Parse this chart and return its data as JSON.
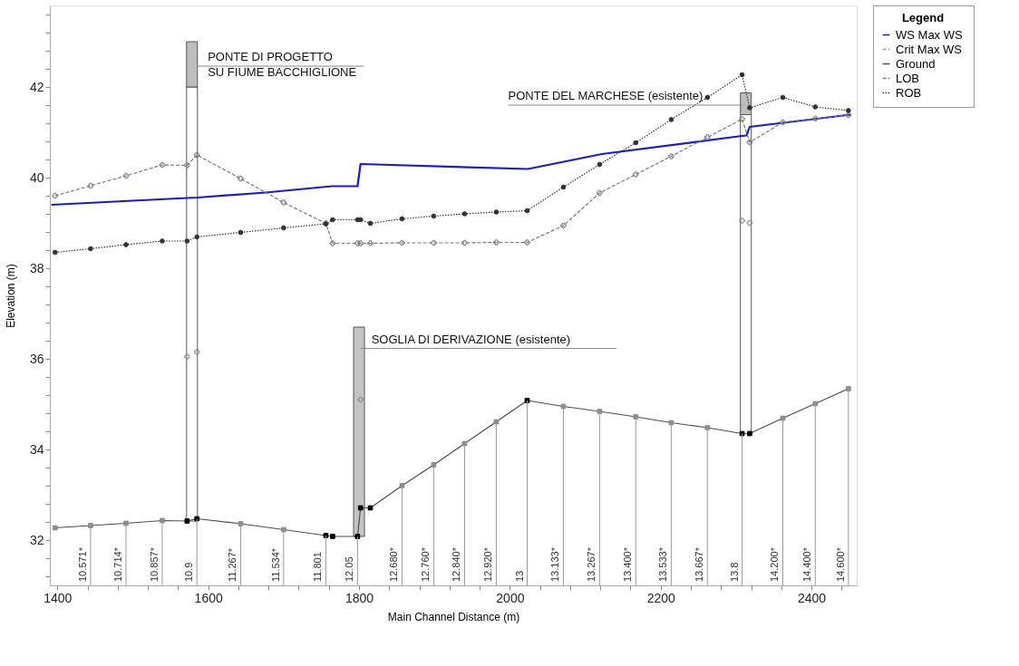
{
  "chart_data": {
    "type": "line",
    "xlabel": "Main Channel Distance (m)",
    "ylabel": "Elevation (m)",
    "legend_title": "Legend",
    "legend": "top right",
    "grid": false,
    "xlim": [
      1390,
      2460
    ],
    "ylim": [
      31,
      43.8
    ],
    "xticks": [
      1400,
      {
        "value": 1440,
        "label": null
      },
      {
        "value": 1480,
        "label": null
      },
      {
        "value": 1520,
        "label": null
      },
      {
        "value": 1560,
        "label": null
      },
      1600,
      {
        "value": 1640,
        "label": null
      },
      {
        "value": 1680,
        "label": null
      },
      {
        "value": 1720,
        "label": null
      },
      {
        "value": 1760,
        "label": null
      },
      1800,
      {
        "value": 1840,
        "label": null
      },
      {
        "value": 1880,
        "label": null
      },
      {
        "value": 1920,
        "label": null
      },
      {
        "value": 1960,
        "label": null
      },
      2000,
      {
        "value": 2040,
        "label": null
      },
      {
        "value": 2080,
        "label": null
      },
      {
        "value": 2120,
        "label": null
      },
      {
        "value": 2160,
        "label": null
      },
      2200,
      {
        "value": 2240,
        "label": null
      },
      {
        "value": 2280,
        "label": null
      },
      {
        "value": 2320,
        "label": null
      },
      {
        "value": 2360,
        "label": null
      },
      2400,
      {
        "value": 2440,
        "label": null
      }
    ],
    "yticks": [
      {
        "value": 31.2,
        "label": null
      },
      {
        "value": 31.6,
        "label": null
      },
      32,
      {
        "value": 32.4,
        "label": null
      },
      {
        "value": 32.8,
        "label": null
      },
      {
        "value": 33.2,
        "label": null
      },
      {
        "value": 33.6,
        "label": null
      },
      34,
      {
        "value": 34.4,
        "label": null
      },
      {
        "value": 34.8,
        "label": null
      },
      {
        "value": 35.2,
        "label": null
      },
      {
        "value": 35.6,
        "label": null
      },
      36,
      {
        "value": 36.4,
        "label": null
      },
      {
        "value": 36.8,
        "label": null
      },
      {
        "value": 37.2,
        "label": null
      },
      {
        "value": 37.6,
        "label": null
      },
      38,
      {
        "value": 38.4,
        "label": null
      },
      {
        "value": 38.8,
        "label": null
      },
      {
        "value": 39.2,
        "label": null
      },
      {
        "value": 39.6,
        "label": null
      },
      40,
      {
        "value": 40.4,
        "label": null
      },
      {
        "value": 40.8,
        "label": null
      },
      {
        "value": 41.2,
        "label": null
      },
      {
        "value": 41.6,
        "label": null
      },
      42,
      {
        "value": 42.4,
        "label": null
      },
      {
        "value": 42.8,
        "label": null
      },
      {
        "value": 43.2,
        "label": null
      },
      {
        "value": 43.6,
        "label": null
      }
    ],
    "x": [
      1397,
      1444,
      1491,
      1539,
      1572,
      1585,
      1643,
      1700,
      1756,
      1765,
      1798,
      1802,
      1815,
      1857,
      1899,
      1940,
      1982,
      2023,
      2071,
      2119,
      2167,
      2214,
      2262,
      2308,
      2318,
      2362,
      2405,
      2449
    ],
    "series": [
      {
        "type": "bar",
        "color": "#ffffff",
        "x": [
          1578.5,
          2313
        ],
        "base": [
          32.42,
          34.35
        ],
        "values": [
          9.58,
          7.04
        ]
      },
      {
        "type": "bar",
        "color": "#bdbdbd",
        "x": [
          1578.5,
          2313
        ],
        "base": [
          42,
          41.39
        ],
        "values": [
          1,
          0.48
        ]
      },
      {
        "type": "bar",
        "color": "#c4c4c4",
        "x": [
          1800
        ],
        "base": [
          32.08
        ],
        "values": [
          4.62
        ]
      },
      {
        "name": "WS  Max WS",
        "color": "#1a1ad6",
        "marker": "none",
        "line_style": "solid",
        "x": [
          1392,
          1572,
          1586,
          1676,
          1764,
          1798,
          1802,
          2024,
          2122,
          2308,
          2314,
          2318,
          2452
        ],
        "values": [
          39.4,
          39.55,
          39.56,
          39.67,
          39.81,
          39.81,
          40.3,
          40.19,
          40.52,
          40.92,
          40.93,
          41.12,
          41.39
        ]
      },
      {
        "name": "Crit  Max WS",
        "color": "#9e9e9e",
        "marker": "square",
        "line_style": "dashed",
        "values": [
          null,
          null,
          null,
          null,
          null,
          null,
          null,
          null,
          null,
          null,
          null,
          null,
          null,
          null,
          null,
          null,
          null,
          null,
          null,
          null,
          null,
          null,
          null,
          null,
          null,
          null,
          null,
          null
        ]
      },
      {
        "name": "Ground",
        "color": "#4d4d4d",
        "marker": "square",
        "line_style": "solid",
        "values": [
          32.27,
          32.32,
          32.37,
          32.43,
          32.42,
          32.47,
          32.36,
          32.23,
          32.1,
          32.08,
          32.08,
          32.71,
          32.71,
          33.2,
          33.66,
          34.13,
          34.61,
          35.08,
          34.95,
          34.84,
          34.72,
          34.59,
          34.48,
          34.35,
          34.35,
          34.69,
          35.01,
          35.34
        ],
        "colors": [
          "#8c8c8c",
          "#8c8c8c",
          "#8c8c8c",
          "#8c8c8c",
          "#000000",
          "#000000",
          "#8c8c8c",
          "#8c8c8c",
          "#000000",
          "#000000",
          "#000000",
          "#000000",
          "#000000",
          "#8c8c8c",
          "#8c8c8c",
          "#8c8c8c",
          "#8c8c8c",
          "#000000",
          "#8c8c8c",
          "#8c8c8c",
          "#8c8c8c",
          "#8c8c8c",
          "#8c8c8c",
          "#000000",
          "#000000",
          "#8c8c8c",
          "#8c8c8c",
          "#8c8c8c"
        ]
      },
      {
        "name": "LOB",
        "color": "#7a7a7a",
        "marker": "cross",
        "line_style": "dashed",
        "values": [
          39.6,
          39.82,
          40.04,
          40.28,
          40.27,
          40.5,
          39.98,
          39.45,
          38.99,
          38.55,
          38.55,
          38.55,
          38.55,
          38.56,
          38.56,
          38.56,
          38.57,
          38.57,
          38.94,
          39.66,
          40.07,
          40.47,
          40.89,
          41.29,
          40.78,
          41.22,
          41.3,
          41.38
        ]
      },
      {
        "name": "ROB",
        "color": "#333333",
        "marker": "circle",
        "line_style": "dotted",
        "values": [
          38.35,
          38.43,
          38.52,
          38.6,
          38.6,
          38.69,
          38.79,
          38.89,
          38.98,
          39.07,
          39.07,
          39.07,
          38.99,
          39.09,
          39.15,
          39.2,
          39.24,
          39.27,
          39.79,
          40.29,
          40.77,
          41.28,
          41.77,
          42.27,
          41.54,
          41.77,
          41.56,
          41.48
        ]
      },
      {
        "type": "scatter",
        "color": "#8a8a8a",
        "marker": "cross",
        "x": [
          1572,
          1585,
          1802,
          2308,
          2318
        ],
        "values": [
          36.05,
          36.15,
          35.1,
          39.05,
          39.0
        ]
      }
    ],
    "annotations": [
      {
        "text": "PONTE DI PROGETTO\nSU FIUME BACCHIGLIONE",
        "x": 1585,
        "y": 42.46
      },
      {
        "text": "PONTE DEL MARCHESE (esistente)",
        "x": 2308,
        "y": 41.6
      },
      {
        "text": "SOGLIA DI DERIVAZIONE (esistente)",
        "x": 1802,
        "y": 36.23
      },
      {
        "text": "10.571*",
        "x": 1444,
        "y": 32.32
      },
      {
        "text": "10.714*",
        "x": 1491,
        "y": 32.37
      },
      {
        "text": "10.857*",
        "x": 1539,
        "y": 32.43
      },
      {
        "text": "10.9",
        "x": 1585,
        "y": 32.47
      },
      {
        "text": "11.267*",
        "x": 1643,
        "y": 32.36
      },
      {
        "text": "11.534*",
        "x": 1700,
        "y": 32.23
      },
      {
        "text": "11.801",
        "x": 1756,
        "y": 32.1
      },
      {
        "text": "12.05",
        "x": 1798,
        "y": 32.08
      },
      {
        "text": "12.680*",
        "x": 1857,
        "y": 33.2
      },
      {
        "text": "12.760*",
        "x": 1899,
        "y": 33.66
      },
      {
        "text": "12.840*",
        "x": 1940,
        "y": 34.13
      },
      {
        "text": "12.920*",
        "x": 1982,
        "y": 34.61
      },
      {
        "text": "13",
        "x": 2023,
        "y": 35.08
      },
      {
        "text": "13.133*",
        "x": 2071,
        "y": 34.95
      },
      {
        "text": "13.267*",
        "x": 2119,
        "y": 34.84
      },
      {
        "text": "13.400*",
        "x": 2167,
        "y": 34.72
      },
      {
        "text": "13.533*",
        "x": 2214,
        "y": 34.59
      },
      {
        "text": "13.667*",
        "x": 2262,
        "y": 34.48
      },
      {
        "text": "13.8",
        "x": 2308,
        "y": 34.35
      },
      {
        "text": "14.200*",
        "x": 2362,
        "y": 34.69
      },
      {
        "text": "14.400*",
        "x": 2405,
        "y": 35.01
      },
      {
        "text": "14.600*",
        "x": 2449,
        "y": 35.34
      }
    ]
  }
}
